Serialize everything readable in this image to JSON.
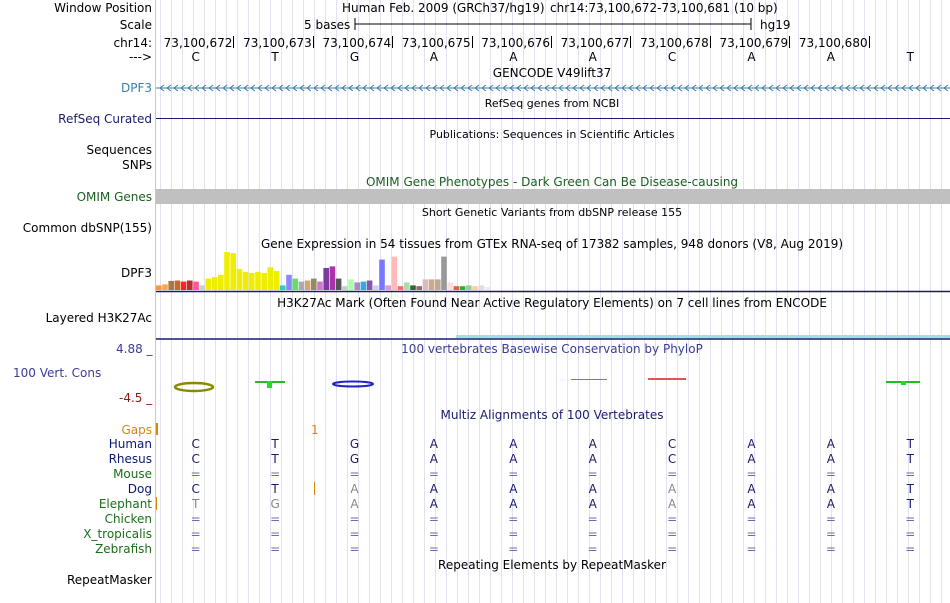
{
  "header": {
    "window_position_label": "Window Position",
    "assembly": "Human Feb. 2009 (GRCh37/hg19)",
    "position": "chr14:73,100,672-73,100,681 (10 bp)",
    "scale_label": "Scale",
    "scale_text": "5 bases",
    "scale_db": "hg19",
    "chrom_label": "chr14:",
    "strand_label": "--->"
  },
  "coordinates": [
    "73,100,672",
    "73,100,673",
    "73,100,674",
    "73,100,675",
    "73,100,676",
    "73,100,677",
    "73,100,678",
    "73,100,679",
    "73,100,680"
  ],
  "bases": [
    "C",
    "T",
    "G",
    "A",
    "A",
    "A",
    "C",
    "A",
    "A",
    "T"
  ],
  "tracks": {
    "gencode": {
      "title": "GENCODE V49lift37",
      "label": "DPF3",
      "color": "#3a7fa8"
    },
    "refseq": {
      "title": "RefSeq genes from NCBI",
      "label": "RefSeq Curated",
      "color": "#1a1a6e"
    },
    "publications": {
      "title": "Publications: Sequences in Scientific Articles",
      "label1": "Sequences",
      "label2": "SNPs"
    },
    "omim": {
      "title": "OMIM Gene Phenotypes - Dark Green Can Be Disease-causing",
      "label": "OMIM Genes",
      "color": "#1b5e20"
    },
    "dbsnp": {
      "title": "Short Genetic Variants from dbSNP release 155",
      "label": "Common dbSNP(155)"
    },
    "gtex": {
      "title": "Gene Expression in 54 tissues from GTEx RNA-seq of 17382 samples, 948 donors (V8, Aug 2019)",
      "label": "DPF3"
    },
    "h3k27ac": {
      "title": "H3K27Ac Mark (Often Found Near Active Regulatory Elements) on 7 cell lines from ENCODE",
      "label": "Layered H3K27Ac"
    },
    "phylop": {
      "title": "100 vertebrates Basewise Conservation by PhyloP",
      "label": "100 Vert. Cons",
      "max": "4.88 _",
      "min": "-4.5 _",
      "color": "#3b3b9a"
    },
    "multiz": {
      "title": "Multiz Alignments of 100 Vertebrates",
      "gaps_label": "Gaps",
      "gaps_value": "1"
    },
    "repeatmasker": {
      "title": "Repeating Elements by RepeatMasker",
      "label": "RepeatMasker"
    }
  },
  "species": [
    {
      "name": "Human",
      "color": "#0b1a6e",
      "row": [
        "C",
        "T",
        "G",
        "A",
        "A",
        "A",
        "C",
        "A",
        "A",
        "T"
      ]
    },
    {
      "name": "Rhesus",
      "color": "#0b1a6e",
      "row": [
        "C",
        "T",
        "G",
        "A",
        "A",
        "A",
        "C",
        "A",
        "A",
        "T"
      ]
    },
    {
      "name": "Mouse",
      "color": "#1b6e1b",
      "row": [
        "=",
        "=",
        "=",
        "=",
        "=",
        "=",
        "=",
        "=",
        "=",
        "="
      ]
    },
    {
      "name": "Dog",
      "color": "#0b1a6e",
      "row": [
        "C",
        "T",
        "A",
        "A",
        "A",
        "A",
        "A",
        "A",
        "A",
        "T"
      ]
    },
    {
      "name": "Elephant",
      "color": "#1b6e1b",
      "row": [
        "T",
        "G",
        "A",
        "A",
        "A",
        "A",
        "A",
        "A",
        "A",
        "T"
      ]
    },
    {
      "name": "Chicken",
      "color": "#1b6e1b",
      "row": [
        "=",
        "=",
        "=",
        "=",
        "=",
        "=",
        "=",
        "=",
        "=",
        "="
      ]
    },
    {
      "name": "X_tropicalis",
      "color": "#1b6e1b",
      "row": [
        "=",
        "=",
        "=",
        "=",
        "=",
        "=",
        "=",
        "=",
        "=",
        "="
      ]
    },
    {
      "name": "Zebrafish",
      "color": "#1b6e1b",
      "row": [
        "=",
        "=",
        "=",
        "=",
        "=",
        "=",
        "=",
        "=",
        "=",
        "="
      ]
    }
  ],
  "gtex_bars": [
    {
      "v": 0.12,
      "c": "#ff9a3c"
    },
    {
      "v": 0.15,
      "c": "#ffa64d"
    },
    {
      "v": 0.24,
      "c": "#aa7744"
    },
    {
      "v": 0.25,
      "c": "#c46a2a"
    },
    {
      "v": 0.22,
      "c": "#ff2222"
    },
    {
      "v": 0.25,
      "c": "#b53030"
    },
    {
      "v": 0.22,
      "c": "#ff5599"
    },
    {
      "v": 0.12,
      "c": "#cccccc"
    },
    {
      "v": 0.3,
      "c": "#eeee00"
    },
    {
      "v": 0.34,
      "c": "#eeee00"
    },
    {
      "v": 0.4,
      "c": "#eeee00"
    },
    {
      "v": 1.0,
      "c": "#eeee00"
    },
    {
      "v": 0.97,
      "c": "#eeee00"
    },
    {
      "v": 0.55,
      "c": "#eeee00"
    },
    {
      "v": 0.48,
      "c": "#eeee00"
    },
    {
      "v": 0.45,
      "c": "#eeee00"
    },
    {
      "v": 0.48,
      "c": "#eeee00"
    },
    {
      "v": 0.45,
      "c": "#eeee00"
    },
    {
      "v": 0.6,
      "c": "#eeee00"
    },
    {
      "v": 0.5,
      "c": "#eeee00"
    },
    {
      "v": 0.12,
      "c": "#33cccc"
    },
    {
      "v": 0.4,
      "c": "#8888ff"
    },
    {
      "v": 0.3,
      "c": "#66dd66"
    },
    {
      "v": 0.22,
      "c": "#aaaaaa"
    },
    {
      "v": 0.25,
      "c": "#ccaa77"
    },
    {
      "v": 0.3,
      "c": "#998866"
    },
    {
      "v": 0.22,
      "c": "#cc77cc"
    },
    {
      "v": 0.58,
      "c": "#7a3a9e"
    },
    {
      "v": 0.62,
      "c": "#aa33aa"
    },
    {
      "v": 0.3,
      "c": "#555555"
    },
    {
      "v": 0.1,
      "c": "#cccccc"
    },
    {
      "v": 0.28,
      "c": "#aaffaa"
    },
    {
      "v": 0.2,
      "c": "#aa88cc"
    },
    {
      "v": 0.22,
      "c": "#33aadd"
    },
    {
      "v": 0.25,
      "c": "#8855aa"
    },
    {
      "v": 0.12,
      "c": "#ccccff"
    },
    {
      "v": 0.8,
      "c": "#7777ff"
    },
    {
      "v": 0.12,
      "c": "#dd99cc"
    },
    {
      "v": 0.88,
      "c": "#ffbbbb"
    },
    {
      "v": 0.1,
      "c": "#ff6666"
    },
    {
      "v": 0.2,
      "c": "#aaddaa"
    },
    {
      "v": 0.12,
      "c": "#336633"
    },
    {
      "v": 0.1,
      "c": "#996666"
    },
    {
      "v": 0.28,
      "c": "#ddbbbb"
    },
    {
      "v": 0.28,
      "c": "#ccaa88"
    },
    {
      "v": 0.28,
      "c": "#bbaa99"
    },
    {
      "v": 0.88,
      "c": "#999999"
    },
    {
      "v": 0.2,
      "c": "#ffdddd"
    },
    {
      "v": 0.1,
      "c": "#cc6644"
    },
    {
      "v": 0.1,
      "c": "#33aa33"
    },
    {
      "v": 0.12,
      "c": "#99cc99"
    },
    {
      "v": 0.1,
      "c": "#ffcc99"
    },
    {
      "v": 0.12,
      "c": "#dddddd"
    },
    {
      "v": 0.08,
      "c": "#eeeeee"
    }
  ]
}
